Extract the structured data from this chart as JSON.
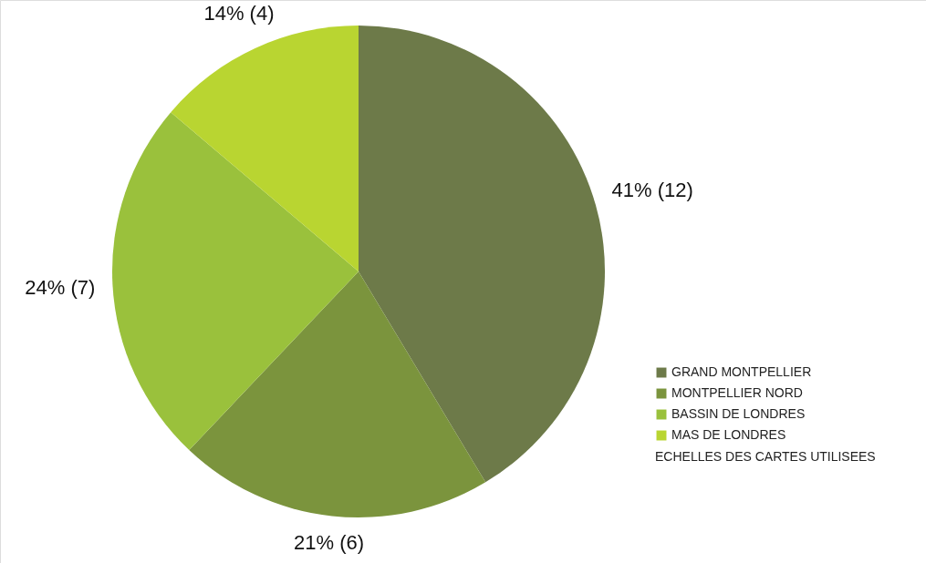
{
  "chart_data": {
    "type": "pie",
    "categories": [
      "GRAND MONTPELLIER",
      "MONTPELLIER NORD",
      "BASSIN DE LONDRES",
      "MAS DE LONDRES"
    ],
    "values": [
      12,
      6,
      7,
      4
    ],
    "colors": [
      "#6d7a49",
      "#7b943d",
      "#9ac13c",
      "#b9d531"
    ],
    "value_labels": [
      "41% (12)",
      "21% (6)",
      "24% (7)",
      "14% (4)"
    ],
    "legend_title": "ECHELLES DES CARTES UTILISEES",
    "legend": "bottom right"
  }
}
